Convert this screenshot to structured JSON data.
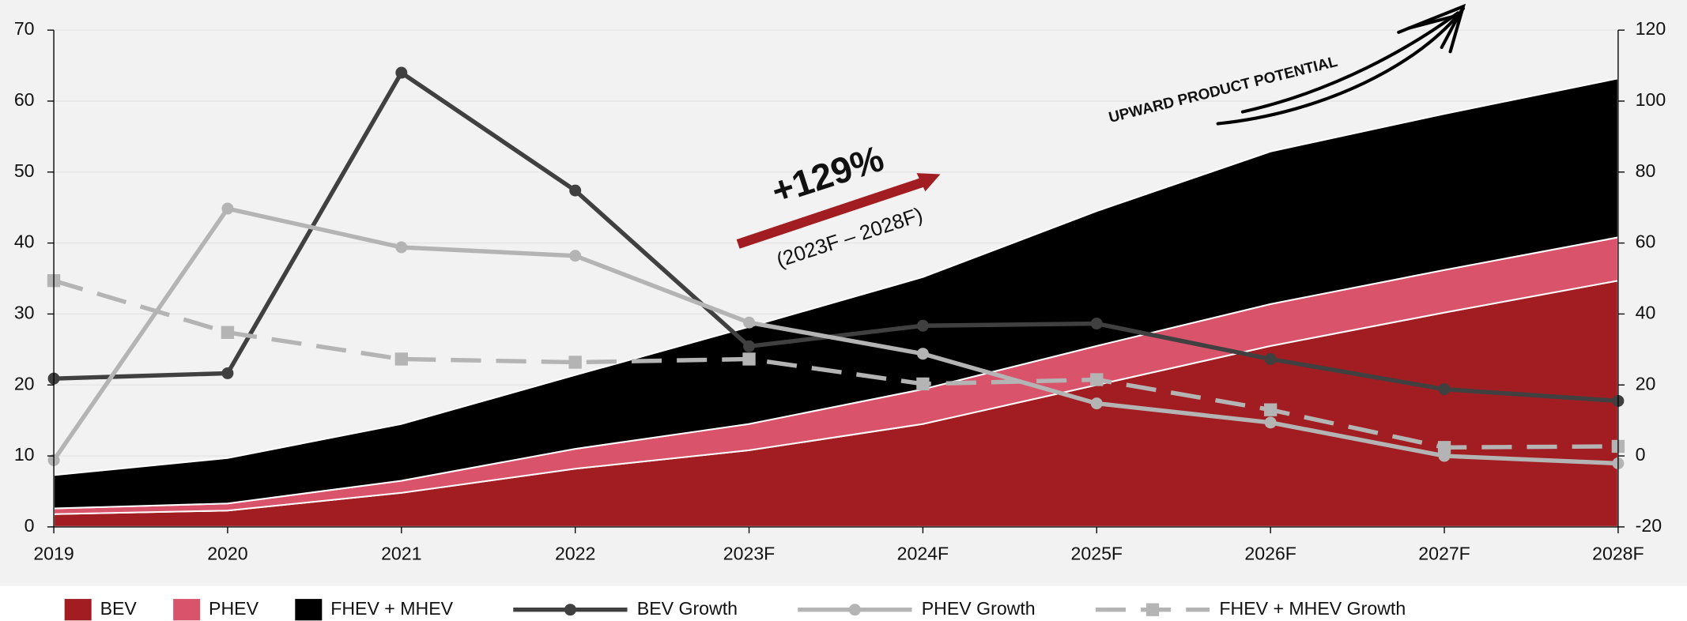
{
  "chart_data": {
    "type": "area",
    "categories": [
      "2019",
      "2020",
      "2021",
      "2022",
      "2023F",
      "2024F",
      "2025F",
      "2026F",
      "2027F",
      "2028F"
    ],
    "ylim": [
      0,
      70
    ],
    "yticks": [
      0,
      10,
      20,
      30,
      40,
      50,
      60,
      70
    ],
    "y2lim": [
      -20,
      120
    ],
    "y2ticks": [
      -20,
      0,
      20,
      40,
      60,
      80,
      100,
      120
    ],
    "annotations": [
      "+129%",
      "(2023F – 2028F)",
      "UPWARD PRODUCT POTENTIAL"
    ],
    "series": [
      {
        "name": "BEV",
        "type": "area",
        "color": "#a11d21",
        "values": [
          1.8,
          2.3,
          4.8,
          8.2,
          10.8,
          14.5,
          20.0,
          25.5,
          30.2,
          34.7
        ]
      },
      {
        "name": "PHEV",
        "type": "area",
        "color": "#d9536b",
        "values": [
          0.8,
          1.0,
          1.7,
          2.8,
          3.7,
          4.9,
          5.5,
          5.9,
          6.0,
          6.1
        ]
      },
      {
        "name": "FHEV + MHEV",
        "type": "area",
        "color": "#000000",
        "values": [
          4.7,
          6.4,
          8.0,
          10.4,
          13.7,
          15.8,
          19.0,
          21.5,
          22.0,
          22.4
        ]
      },
      {
        "name": "BEV Growth",
        "type": "line",
        "axis": "y2",
        "color": "#404040",
        "marker": "circle",
        "dash": false,
        "values": [
          21.8,
          23.3,
          108,
          74.8,
          30.9,
          36.7,
          37.3,
          27.3,
          18.8,
          15.5
        ]
      },
      {
        "name": "PHEV Growth",
        "type": "line",
        "axis": "y2",
        "color": "#b4b4b4",
        "marker": "circle",
        "dash": false,
        "values": [
          -1.2,
          69.7,
          58.8,
          56.4,
          37.6,
          28.8,
          14.8,
          9.4,
          0,
          -2.1
        ]
      },
      {
        "name": "FHEV + MHEV Growth",
        "type": "line",
        "axis": "y2",
        "color": "#b4b4b4",
        "marker": "square",
        "dash": true,
        "values": [
          49.4,
          34.8,
          27.3,
          26.4,
          27.3,
          20.3,
          21.5,
          13.0,
          2.4,
          2.7
        ]
      }
    ]
  }
}
